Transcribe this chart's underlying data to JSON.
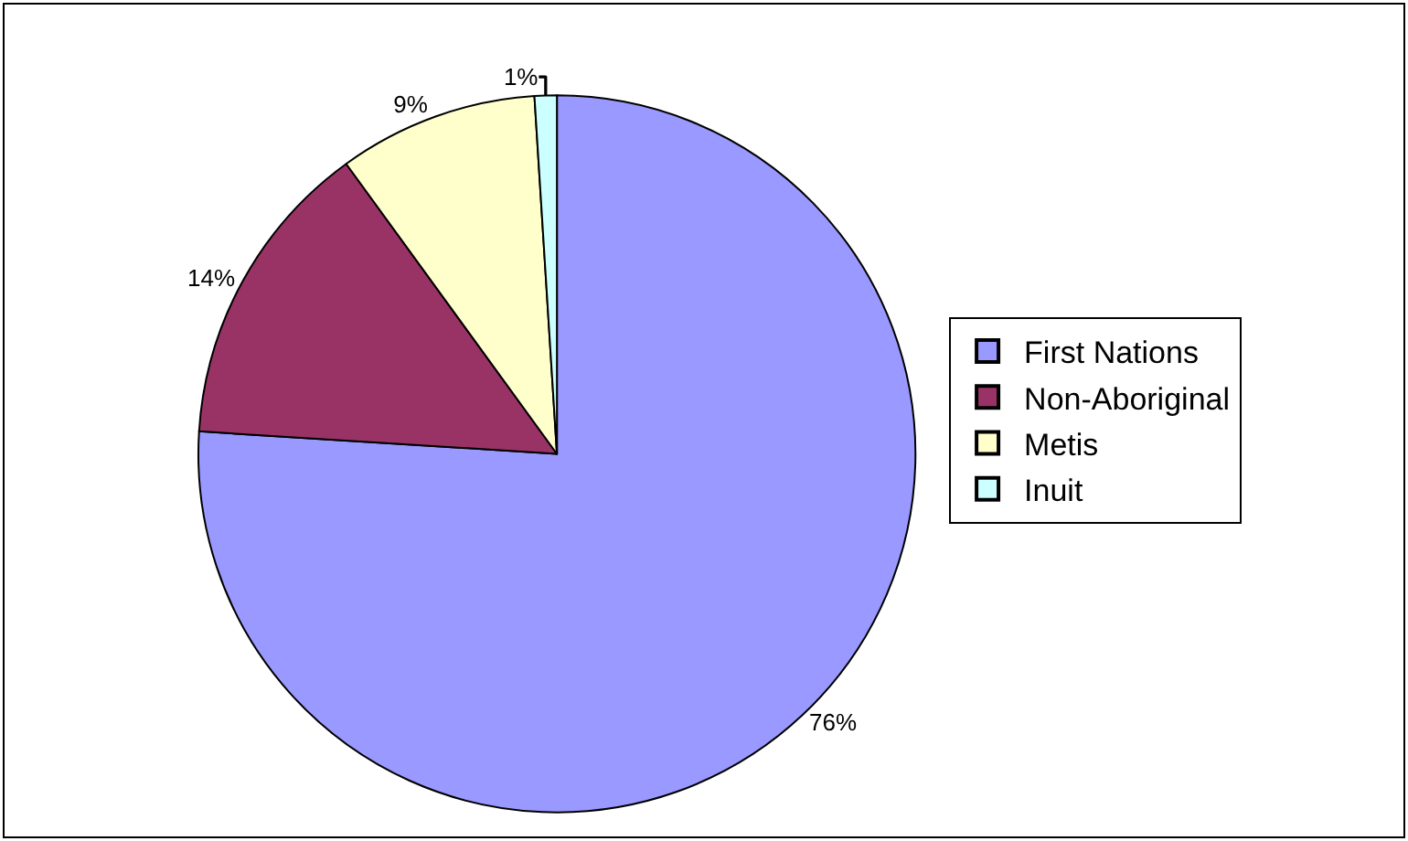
{
  "chart_data": {
    "type": "pie",
    "categories": [
      "First Nations",
      "Non-Aboriginal",
      "Metis",
      "Inuit"
    ],
    "values": [
      76,
      14,
      9,
      1
    ],
    "colors": [
      "#9999ff",
      "#993366",
      "#ffffcc",
      "#ccffff"
    ],
    "value_labels": [
      "76%",
      "14%",
      "9%",
      "1%"
    ],
    "legend": "right"
  }
}
